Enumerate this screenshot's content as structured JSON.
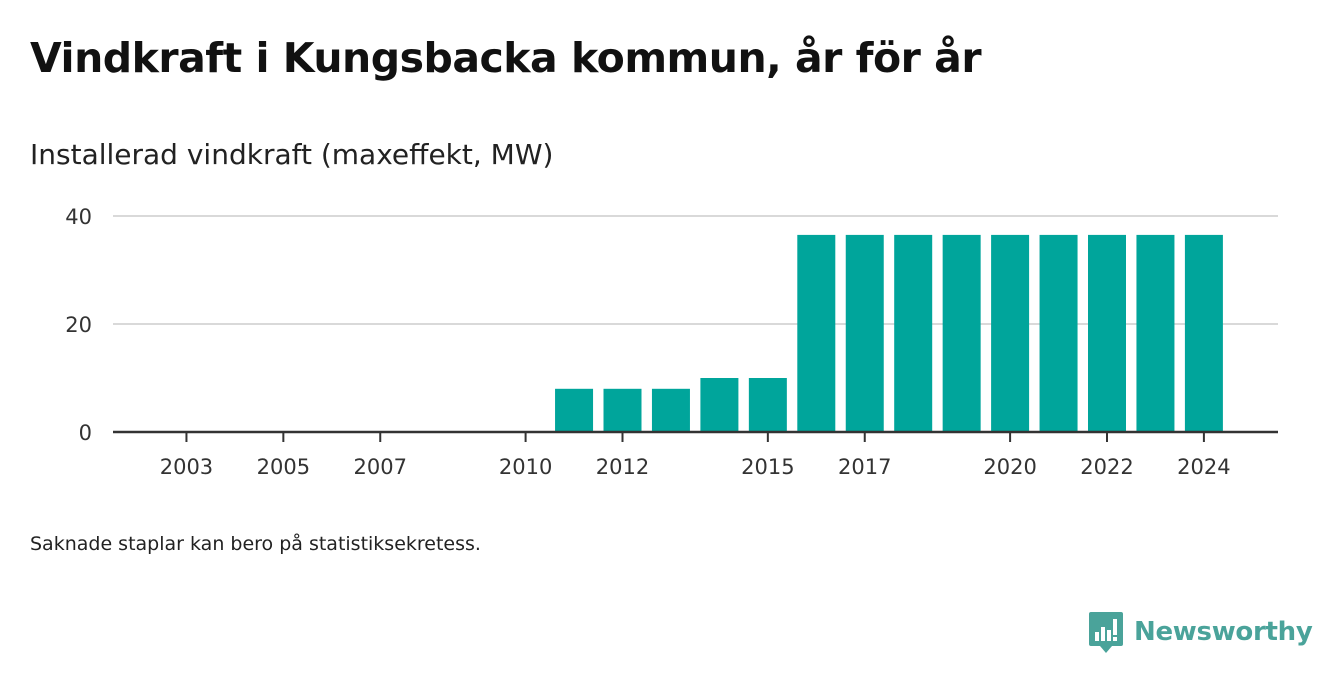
{
  "title": "Vindkraft i Kungsbacka kommun, år för år",
  "subtitle": "Installerad vindkraft (maxeffekt, MW)",
  "footnote": "Saknade staplar kan bero på statistiksekretess.",
  "brand": {
    "name": "Newsworthy",
    "icon": "newsworthy-logo-icon"
  },
  "colors": {
    "bar": "#00a59b",
    "grid": "#d9d9d9",
    "axis": "#333333",
    "brand": "#4aa39a"
  },
  "chart_data": {
    "type": "bar",
    "title": "Installerad vindkraft (maxeffekt, MW)",
    "xlabel": "",
    "ylabel": "",
    "ylim": [
      0,
      40
    ],
    "yticks": [
      0,
      20,
      40
    ],
    "grid": true,
    "categories": [
      2002,
      2003,
      2004,
      2005,
      2006,
      2007,
      2008,
      2009,
      2010,
      2011,
      2012,
      2013,
      2014,
      2015,
      2016,
      2017,
      2018,
      2019,
      2020,
      2021,
      2022,
      2023,
      2024,
      2025
    ],
    "xticks": [
      "2003",
      "2005",
      "2007",
      "2010",
      "2012",
      "2015",
      "2017",
      "2020",
      "2022",
      "2024"
    ],
    "series": [
      {
        "values": [
          null,
          null,
          null,
          null,
          null,
          null,
          null,
          null,
          null,
          8,
          8,
          8,
          10,
          10,
          36.5,
          36.5,
          36.5,
          36.5,
          36.5,
          36.5,
          36.5,
          36.5,
          36.5,
          null
        ]
      }
    ]
  }
}
